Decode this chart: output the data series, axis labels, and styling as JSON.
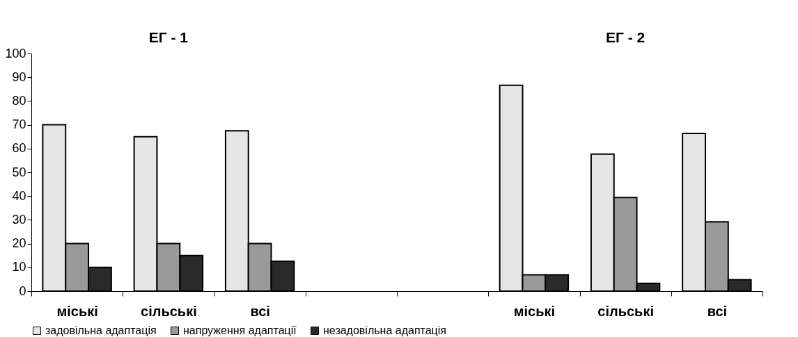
{
  "chart_data": {
    "type": "bar",
    "annotations": [
      "ЕГ - 1",
      "ЕГ - 2"
    ],
    "categories": [
      "міські",
      "сільські",
      "всі",
      null,
      null,
      "міські",
      "сільські",
      "всі"
    ],
    "series": [
      {
        "name": "задовільна адаптація",
        "color": "#e6e6e6",
        "values": [
          70,
          65,
          67.5,
          null,
          null,
          86.6,
          57.7,
          66.4
        ]
      },
      {
        "name": "напруження адаптації",
        "color": "#9a9a9a",
        "values": [
          20,
          20,
          20,
          null,
          null,
          6.9,
          39.4,
          29.2
        ]
      },
      {
        "name": "незадовільна адаптація",
        "color": "#2a2a2a",
        "values": [
          10,
          15,
          12.6,
          null,
          null,
          6.9,
          3.3,
          4.8
        ]
      }
    ],
    "ylim": [
      0,
      100
    ],
    "yticks": [
      0,
      10,
      20,
      30,
      40,
      50,
      60,
      70,
      80,
      90,
      100
    ],
    "grid": false,
    "legend": "bottom"
  }
}
